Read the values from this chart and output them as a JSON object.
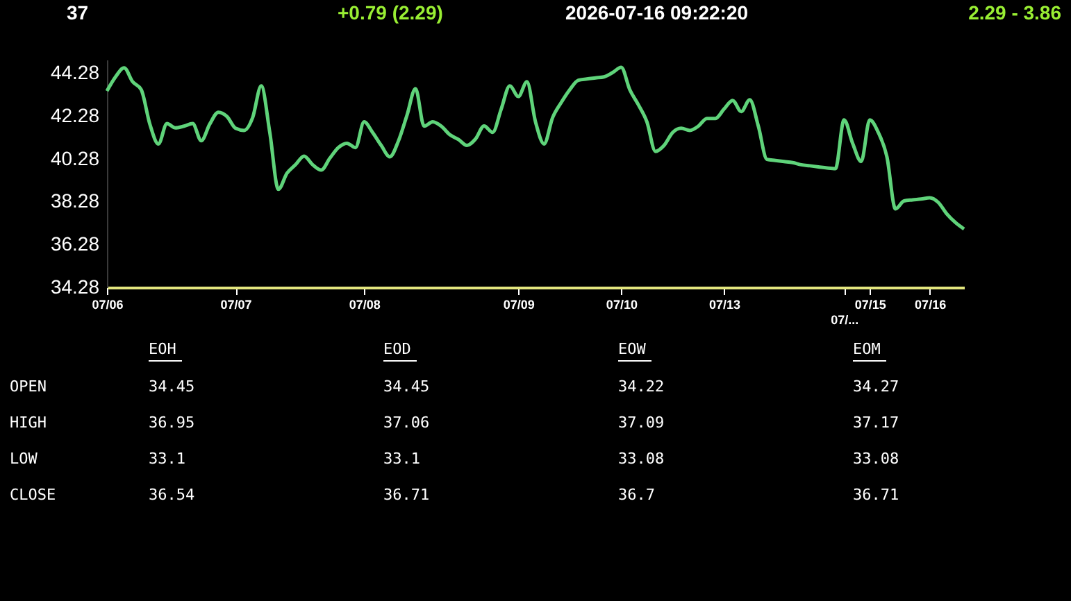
{
  "chart_data": {
    "type": "line",
    "categories": [
      "07/06",
      null,
      null,
      null,
      null,
      null,
      null,
      null,
      null,
      null,
      null,
      null,
      null,
      null,
      null,
      "07/07",
      null,
      null,
      null,
      null,
      null,
      null,
      null,
      null,
      null,
      null,
      null,
      null,
      null,
      null,
      "07/08",
      null,
      null,
      null,
      null,
      null,
      null,
      null,
      null,
      null,
      null,
      null,
      null,
      null,
      null,
      null,
      null,
      null,
      "07/09",
      null,
      null,
      null,
      null,
      null,
      null,
      null,
      null,
      null,
      null,
      null,
      "07/10",
      null,
      null,
      null,
      null,
      null,
      null,
      null,
      null,
      null,
      null,
      null,
      "07/13",
      null,
      null,
      null,
      null,
      null,
      null,
      null,
      null,
      null,
      null,
      null,
      null,
      null,
      "07/...",
      null,
      null,
      "07/15",
      null,
      null,
      null,
      null,
      null,
      null,
      "07/16",
      null,
      null,
      null,
      null
    ],
    "series": [
      {
        "color": "#5fd37a",
        "values": [
          43.44,
          44.1,
          44.52,
          43.87,
          43.5,
          41.9,
          40.97,
          41.92,
          41.72,
          41.8,
          41.92,
          41.12,
          41.9,
          42.45,
          42.25,
          41.7,
          41.6,
          42.2,
          43.68,
          41.5,
          38.85,
          39.6,
          40.0,
          40.4,
          40.0,
          39.75,
          40.3,
          40.8,
          41.0,
          40.8,
          42.0,
          41.5,
          40.9,
          40.37,
          41.1,
          42.3,
          43.55,
          41.8,
          42.0,
          41.8,
          41.4,
          41.18,
          40.9,
          41.2,
          41.81,
          41.51,
          42.6,
          43.68,
          43.18,
          43.87,
          42.0,
          40.97,
          42.2,
          42.9,
          43.5,
          43.94,
          44.0,
          44.05,
          44.1,
          44.3,
          44.54,
          43.5,
          42.8,
          42.0,
          40.62,
          40.9,
          41.5,
          41.7,
          41.6,
          41.8,
          42.16,
          42.16,
          42.6,
          43.0,
          42.48,
          43.03,
          41.8,
          40.25,
          40.2,
          40.15,
          40.1,
          40.0,
          39.95,
          39.9,
          39.85,
          39.82,
          42.09,
          41.0,
          40.15,
          42.09,
          41.5,
          40.37,
          37.94,
          38.31,
          38.36,
          38.4,
          38.46,
          38.24,
          37.7,
          37.3,
          37.0
        ]
      }
    ],
    "ylim": [
      34.28,
      44.9
    ],
    "yticks": [
      34.28,
      36.28,
      38.28,
      40.28,
      42.28,
      44.28
    ],
    "grid": false,
    "legend": false,
    "marker": "none",
    "line_style": "solid",
    "annotations": [
      "37",
      "+0.79  (2.29)",
      "2026-07-16   09:22:20",
      "2.29   -   3.86",
      "EOH",
      "EOD",
      "EOW",
      "EOM",
      "OPEN",
      "34.45",
      "34.45",
      "34.22",
      "34.27",
      "HIGH",
      "36.95",
      "37.06",
      "37.09",
      "37.17",
      "LOW",
      "33.1",
      "33.1",
      "33.08",
      "33.08",
      "CLOSE",
      "36.54",
      "36.71",
      "36.7",
      "36.71"
    ]
  }
}
